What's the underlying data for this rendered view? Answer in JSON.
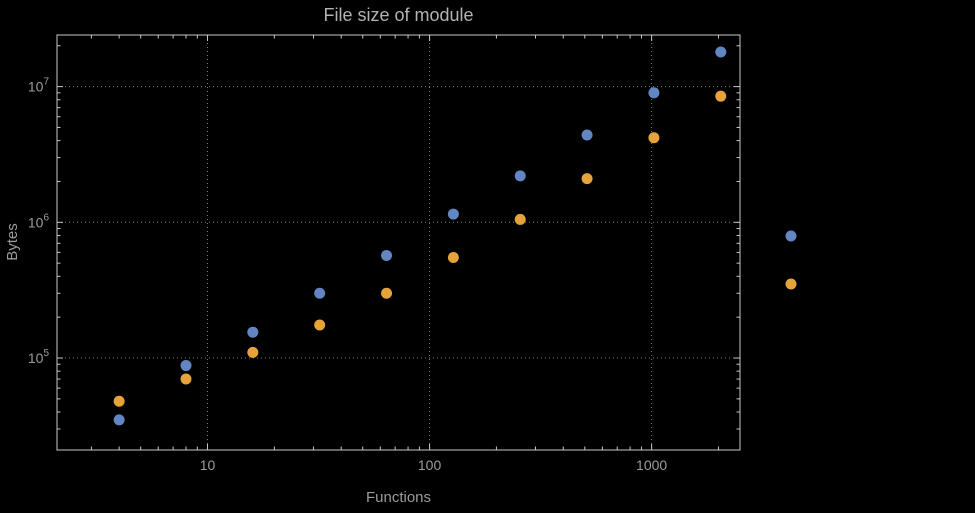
{
  "chart_data": {
    "type": "scatter",
    "title": "File size of module",
    "xlabel": "Functions",
    "ylabel": "Bytes",
    "x_scale": "log",
    "y_scale": "log",
    "xlim": [
      2.1,
      2500
    ],
    "ylim": [
      21000,
      24000000
    ],
    "grid": true,
    "x_ticks": [
      {
        "value": 10,
        "label": "10"
      },
      {
        "value": 100,
        "label": "100"
      },
      {
        "value": 1000,
        "label": "1000"
      }
    ],
    "y_ticks": [
      {
        "value": 100000,
        "base": "10",
        "exp": "5"
      },
      {
        "value": 1000000,
        "base": "10",
        "exp": "6"
      },
      {
        "value": 10000000,
        "base": "10",
        "exp": "7"
      }
    ],
    "series": [
      {
        "id": "blue",
        "color": "#6286c3",
        "points": [
          [
            4,
            35000
          ],
          [
            8,
            88000
          ],
          [
            16,
            155000
          ],
          [
            32,
            300000
          ],
          [
            64,
            570000
          ],
          [
            128,
            1150000
          ],
          [
            256,
            2200000
          ],
          [
            512,
            4400000
          ],
          [
            1024,
            9000000
          ],
          [
            2048,
            18000000
          ]
        ]
      },
      {
        "id": "orange",
        "color": "#e6a33c",
        "points": [
          [
            4,
            48000
          ],
          [
            8,
            70000
          ],
          [
            16,
            110000
          ],
          [
            32,
            175000
          ],
          [
            64,
            300000
          ],
          [
            128,
            550000
          ],
          [
            256,
            1050000
          ],
          [
            512,
            2100000
          ],
          [
            1024,
            4200000
          ],
          [
            2048,
            8500000
          ]
        ]
      }
    ],
    "legend_markers": [
      {
        "series": "blue",
        "color": "#6286c3"
      },
      {
        "series": "orange",
        "color": "#e6a33c"
      }
    ],
    "legend_position": "right-outside",
    "legend_labels_visible": false
  },
  "colors": {
    "background": "#000000",
    "frame": "#c8c8c8",
    "grid": "#808080",
    "text": "#9c9c9c",
    "title": "#b3b3b3"
  }
}
